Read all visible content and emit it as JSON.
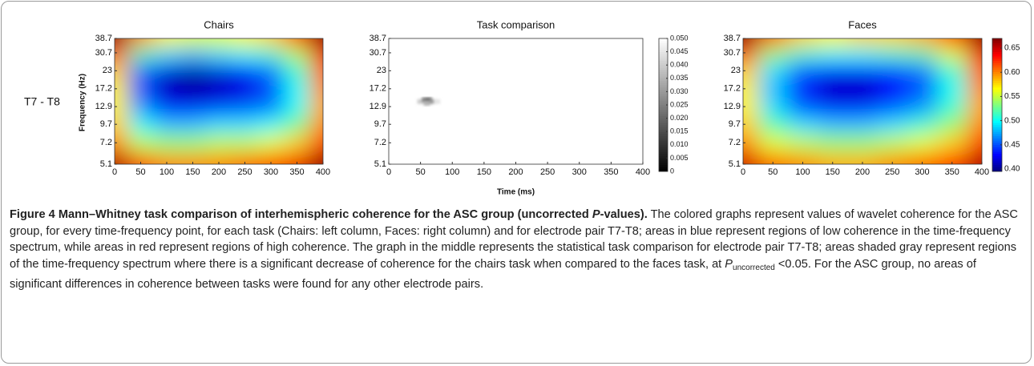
{
  "row_label": "T7 - T8",
  "chart_data": [
    {
      "type": "heatmap",
      "title": "Chairs",
      "ylabel": "Frequency (Hz)",
      "x": [
        0,
        50,
        100,
        150,
        200,
        250,
        300,
        350,
        400
      ],
      "y": [
        5.1,
        7.2,
        9.7,
        12.9,
        17.2,
        23,
        30.7,
        38.7
      ],
      "z": [
        [
          0.66,
          0.62,
          0.6,
          0.6,
          0.6,
          0.61,
          0.62,
          0.64,
          0.67
        ],
        [
          0.6,
          0.55,
          0.54,
          0.54,
          0.55,
          0.55,
          0.56,
          0.58,
          0.62
        ],
        [
          0.58,
          0.5,
          0.48,
          0.48,
          0.49,
          0.49,
          0.5,
          0.53,
          0.6
        ],
        [
          0.57,
          0.47,
          0.43,
          0.43,
          0.44,
          0.45,
          0.46,
          0.5,
          0.59
        ],
        [
          0.57,
          0.45,
          0.41,
          0.4,
          0.41,
          0.42,
          0.45,
          0.5,
          0.6
        ],
        [
          0.58,
          0.46,
          0.42,
          0.41,
          0.42,
          0.43,
          0.46,
          0.51,
          0.61
        ],
        [
          0.62,
          0.52,
          0.49,
          0.48,
          0.49,
          0.5,
          0.51,
          0.55,
          0.64
        ],
        [
          0.67,
          0.6,
          0.57,
          0.56,
          0.56,
          0.57,
          0.58,
          0.62,
          0.68
        ]
      ],
      "xlim": [
        0,
        400
      ],
      "ylim": [
        5.1,
        38.7
      ],
      "ylog": true,
      "xticks": [
        0,
        50,
        100,
        150,
        200,
        250,
        300,
        350,
        400
      ],
      "yticks": [
        5.1,
        7.2,
        9.7,
        12.9,
        17.2,
        23,
        30.7,
        38.7
      ],
      "colormap": "jet",
      "zlim": [
        0.395,
        0.67
      ],
      "colorbar": false
    },
    {
      "type": "significance",
      "title": "Task comparison",
      "xlabel": "Time (ms)",
      "cells": [
        {
          "x": 50,
          "y": 14.0,
          "value": 0.04
        },
        {
          "x": 57,
          "y": 14.4,
          "value": 0.025
        },
        {
          "x": 63,
          "y": 14.4,
          "value": 0.02
        },
        {
          "x": 60,
          "y": 13.6,
          "value": 0.035
        },
        {
          "x": 69,
          "y": 14.0,
          "value": 0.03
        },
        {
          "x": 76,
          "y": 14.0,
          "value": 0.045
        }
      ],
      "xlim": [
        0,
        400
      ],
      "ylim": [
        5.1,
        38.7
      ],
      "ylog": true,
      "xticks": [
        0,
        50,
        100,
        150,
        200,
        250,
        300,
        350,
        400
      ],
      "yticks": [
        5.1,
        7.2,
        9.7,
        12.9,
        17.2,
        23,
        30.7,
        38.7
      ],
      "colormap": "gray",
      "zlim": [
        0,
        0.05
      ],
      "colorbar": true,
      "zticks": [
        0,
        0.005,
        {
          "value": 0.01,
          "label": "0.010"
        },
        0.015,
        {
          "value": 0.02,
          "label": "0.020"
        },
        0.025,
        {
          "value": 0.03,
          "label": "0.030"
        },
        0.035,
        {
          "value": 0.04,
          "label": "0.040"
        },
        0.045,
        {
          "value": 0.05,
          "label": "0.050"
        }
      ]
    },
    {
      "type": "heatmap",
      "title": "Faces",
      "x": [
        0,
        50,
        100,
        150,
        200,
        250,
        300,
        350,
        400
      ],
      "y": [
        5.1,
        7.2,
        9.7,
        12.9,
        17.2,
        23,
        30.7,
        38.7
      ],
      "z": [
        [
          0.65,
          0.61,
          0.6,
          0.59,
          0.59,
          0.6,
          0.61,
          0.63,
          0.66
        ],
        [
          0.6,
          0.56,
          0.55,
          0.54,
          0.54,
          0.55,
          0.56,
          0.58,
          0.62
        ],
        [
          0.58,
          0.52,
          0.49,
          0.48,
          0.48,
          0.49,
          0.51,
          0.54,
          0.6
        ],
        [
          0.57,
          0.49,
          0.45,
          0.43,
          0.43,
          0.45,
          0.47,
          0.51,
          0.59
        ],
        [
          0.57,
          0.48,
          0.44,
          0.41,
          0.41,
          0.43,
          0.45,
          0.5,
          0.6
        ],
        [
          0.58,
          0.49,
          0.45,
          0.43,
          0.43,
          0.44,
          0.46,
          0.51,
          0.61
        ],
        [
          0.62,
          0.54,
          0.51,
          0.5,
          0.5,
          0.51,
          0.52,
          0.56,
          0.64
        ],
        [
          0.67,
          0.61,
          0.58,
          0.57,
          0.58,
          0.58,
          0.59,
          0.62,
          0.68
        ]
      ],
      "xlim": [
        0,
        400
      ],
      "ylim": [
        5.1,
        38.7
      ],
      "ylog": true,
      "xticks": [
        0,
        50,
        100,
        150,
        200,
        250,
        300,
        350,
        400
      ],
      "yticks": [
        5.1,
        7.2,
        9.7,
        12.9,
        17.2,
        23,
        30.7,
        38.7
      ],
      "colormap": "jet",
      "zlim": [
        0.395,
        0.67
      ],
      "colorbar": true,
      "zticks": [
        {
          "value": 0.4,
          "label": "0.40"
        },
        0.45,
        {
          "value": 0.5,
          "label": "0.50"
        },
        0.55,
        {
          "value": 0.6,
          "label": "0.60"
        },
        0.65
      ]
    }
  ],
  "caption": [
    {
      "text": "Figure 4 Mann–Whitney task comparison of interhemispheric coherence for the ASC group (uncorrected ",
      "style": "bold"
    },
    {
      "text": "P",
      "style": "bold-italic"
    },
    {
      "text": "-values).",
      "style": "bold"
    },
    {
      "text": " The colored graphs represent values of wavelet coherence for the ASC group, for every time-frequency point, for each task (Chairs: left column, Faces: right column) and for electrode pair T7-T8; areas in blue represent regions of low coherence in the time-frequency spectrum, while areas in red represent regions of high coherence. The graph in the middle represents the statistical task comparison for electrode pair T7-T8; areas shaded gray represent regions of the time-frequency spectrum where there is a significant decrease of coherence for the chairs task when compared to the faces task, at ",
      "style": "normal"
    },
    {
      "text": "P",
      "style": "italic"
    },
    {
      "text": "uncorrected",
      "style": "sub"
    },
    {
      "text": " <0.05. For the ASC group, no areas of significant differences in coherence between tasks were found for any other electrode pairs.",
      "style": "normal"
    }
  ]
}
